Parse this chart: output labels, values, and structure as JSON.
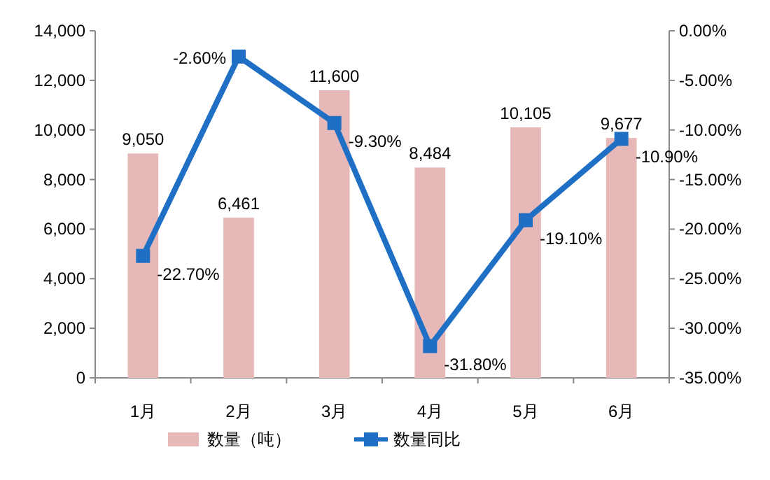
{
  "chart_data": {
    "type": "bar",
    "categories": [
      "1月",
      "2月",
      "3月",
      "4月",
      "5月",
      "6月"
    ],
    "series": [
      {
        "name": "数量（吨）",
        "color": "#e6b8b7",
        "values": [
          9050,
          6461,
          11600,
          8484,
          10105,
          9677
        ],
        "value_labels": [
          "9,050",
          "6,461",
          "11,600",
          "8,484",
          "10,105",
          "9,677"
        ]
      },
      {
        "name": "数量同比",
        "type": "line",
        "axis": "y2",
        "color": "#1f6fc5",
        "marker": "square",
        "values": [
          -22.7,
          -2.6,
          -9.3,
          -31.8,
          -19.1,
          -10.9
        ],
        "value_labels": [
          "-22.70%",
          "-2.60%",
          "-9.30%",
          "-31.80%",
          "-19.10%",
          "-10.90%"
        ]
      }
    ],
    "ylim": [
      0,
      14000
    ],
    "yticks": [
      0,
      {
        "value": 2000,
        "label": "2,000"
      },
      {
        "value": 4000,
        "label": "4,000"
      },
      {
        "value": 6000,
        "label": "6,000"
      },
      {
        "value": 8000,
        "label": "8,000"
      },
      {
        "value": 10000,
        "label": "10,000"
      },
      {
        "value": 12000,
        "label": "12,000"
      },
      {
        "value": 14000,
        "label": "14,000"
      }
    ],
    "y2lim": [
      -35,
      0
    ],
    "y2ticks": [
      {
        "value": 0,
        "label": "0.00%"
      },
      {
        "value": -5,
        "label": "-5.00%"
      },
      {
        "value": -10,
        "label": "-10.00%"
      },
      {
        "value": -15,
        "label": "-15.00%"
      },
      {
        "value": -20,
        "label": "-20.00%"
      },
      {
        "value": -25,
        "label": "-25.00%"
      },
      {
        "value": -30,
        "label": "-30.00%"
      },
      {
        "value": -35,
        "label": "-35.00%"
      }
    ],
    "legend": "bottom"
  }
}
